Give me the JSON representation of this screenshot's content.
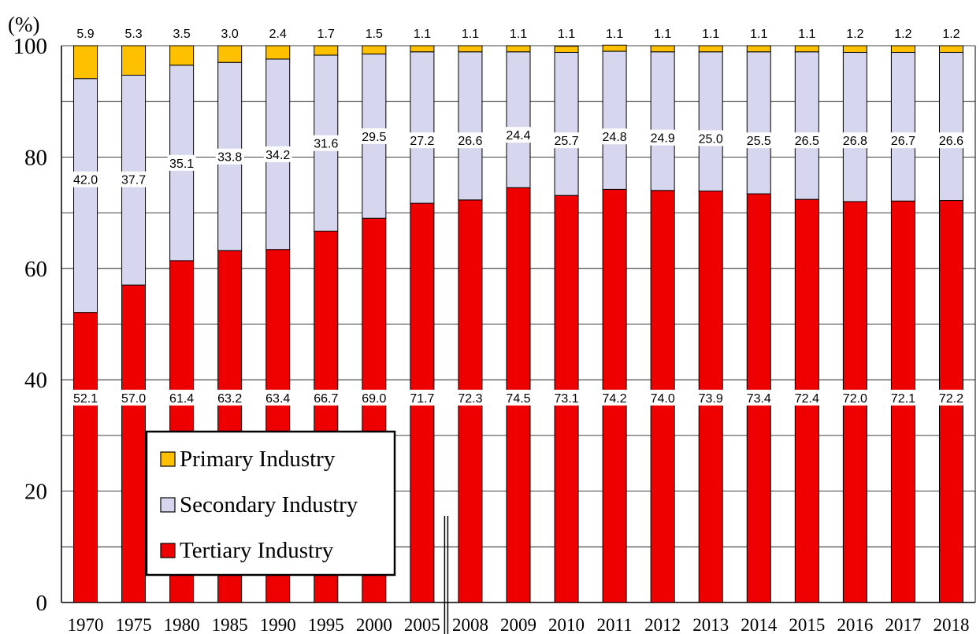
{
  "chart_data": {
    "type": "bar",
    "stacked": true,
    "yunit": "(%)",
    "ylim": [
      0,
      100
    ],
    "yticks": [
      0,
      20,
      40,
      60,
      80,
      100
    ],
    "grid": true,
    "legend_position": "bottom-left (inside plot)",
    "categories": [
      "1970",
      "1975",
      "1980",
      "1985",
      "1990",
      "1995",
      "2000",
      "2005",
      "2008",
      "2009",
      "2010",
      "2011",
      "2012",
      "2013",
      "2014",
      "2015",
      "2016",
      "2017",
      "2018"
    ],
    "axis_break_after": "2005",
    "series": [
      {
        "name": "Tertiary Industry",
        "color": "#ee0000",
        "values": [
          52.1,
          57.0,
          61.4,
          63.2,
          63.4,
          66.7,
          69.0,
          71.7,
          72.3,
          74.5,
          73.1,
          74.2,
          74.0,
          73.9,
          73.4,
          72.4,
          72.0,
          72.1,
          72.2
        ],
        "labels": [
          "52.1",
          "57.0",
          "61.4",
          "63.2",
          "63.4",
          "66.7",
          "69.0",
          "71.7",
          "72.3",
          "74.5",
          "73.1",
          "74.2",
          "74.0",
          "73.9",
          "73.4",
          "72.4",
          "72.0",
          "72.1",
          "72.2"
        ]
      },
      {
        "name": "Secondary Industry",
        "color": "#d6d6ee",
        "values": [
          42.0,
          37.7,
          35.1,
          33.8,
          34.2,
          31.6,
          29.5,
          27.2,
          26.6,
          24.4,
          25.7,
          24.8,
          24.9,
          25.0,
          25.5,
          26.5,
          26.8,
          26.7,
          26.6
        ],
        "labels": [
          "42.0",
          "37.7",
          "35.1",
          "33.8",
          "34.2",
          "31.6",
          "29.5",
          "27.2",
          "26.6",
          "24.4",
          "25.7",
          "24.8",
          "24.9",
          "25.0",
          "25.5",
          "26.5",
          "26.8",
          "26.7",
          "26.6"
        ]
      },
      {
        "name": "Primary Industry",
        "color": "#ffc000",
        "values": [
          5.9,
          5.3,
          3.5,
          3.0,
          2.4,
          1.7,
          1.5,
          1.1,
          1.1,
          1.1,
          1.1,
          1.1,
          1.1,
          1.1,
          1.1,
          1.1,
          1.2,
          1.2,
          1.2
        ],
        "labels": [
          "5.9",
          "5.3",
          "3.5",
          "3.0",
          "2.4",
          "1.7",
          "1.5",
          "1.1",
          "1.1",
          "1.1",
          "1.1",
          "1.1",
          "1.1",
          "1.1",
          "1.1",
          "1.1",
          "1.2",
          "1.2",
          "1.2"
        ]
      }
    ],
    "legend_order": [
      "Primary Industry",
      "Secondary Industry",
      "Tertiary Industry"
    ]
  }
}
